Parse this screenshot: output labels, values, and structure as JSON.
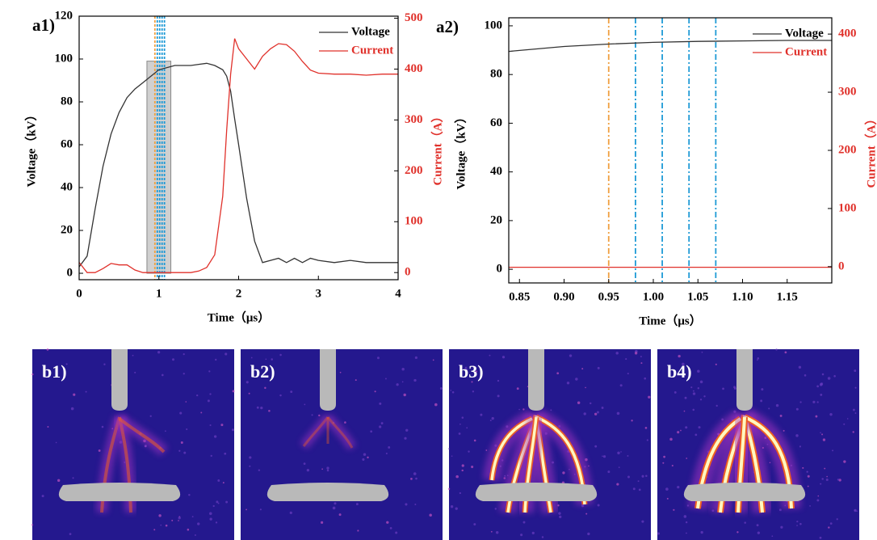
{
  "chart_data": [
    {
      "type": "line",
      "label": "a1)",
      "xlabel": "Time（μs）",
      "ylabel": "Voltage（kV）",
      "y2label": "Current（A）",
      "x": [
        0,
        0.1,
        0.2,
        0.3,
        0.4,
        0.5,
        0.6,
        0.7,
        0.8,
        0.9,
        1.0,
        1.2,
        1.4,
        1.5,
        1.6,
        1.7,
        1.8,
        1.85,
        1.9,
        1.95,
        2.0,
        2.1,
        2.2,
        2.3,
        2.4,
        2.5,
        2.6,
        2.7,
        2.8,
        2.9,
        3.0,
        3.2,
        3.4,
        3.6,
        3.8,
        4.0
      ],
      "xlim": [
        0,
        4
      ],
      "xticks": [
        0,
        1,
        2,
        3,
        4
      ],
      "ylim": [
        -3,
        120
      ],
      "yticks": [
        0,
        20,
        40,
        60,
        80,
        100,
        120
      ],
      "y2lim": [
        -14,
        504
      ],
      "y2ticks": [
        0,
        100,
        200,
        300,
        400,
        500
      ],
      "series": [
        {
          "name": "Voltage",
          "color": "#333333",
          "values": [
            3,
            8,
            30,
            50,
            65,
            75,
            82,
            86,
            89,
            92,
            95,
            97,
            97,
            97.5,
            98,
            97,
            95,
            92,
            85,
            72,
            60,
            35,
            15,
            5,
            6,
            7,
            5,
            7,
            5,
            7,
            6,
            5,
            6,
            5,
            5,
            5
          ]
        },
        {
          "name": "Current",
          "color": "#e0312b",
          "axis": "y2",
          "values": [
            20,
            0,
            0,
            8,
            18,
            15,
            15,
            5,
            0,
            0,
            0,
            0,
            0,
            3,
            10,
            35,
            150,
            280,
            390,
            460,
            440,
            420,
            400,
            425,
            440,
            450,
            448,
            435,
            415,
            398,
            392,
            390,
            390,
            388,
            390,
            390
          ]
        }
      ],
      "highlight": {
        "x": [
          0.85,
          1.15
        ],
        "y": [
          0,
          99
        ]
      },
      "markers": [
        {
          "x": 0.95,
          "color": "#f0a040"
        },
        {
          "x": 0.98,
          "color": "#1e9ad6"
        },
        {
          "x": 1.01,
          "color": "#1e9ad6"
        },
        {
          "x": 1.04,
          "color": "#1e9ad6"
        },
        {
          "x": 1.07,
          "color": "#1e9ad6"
        }
      ],
      "legend": "upper right"
    },
    {
      "type": "line",
      "label": "a2)",
      "xlabel": "Time（μs）",
      "ylabel": "Voltage（kV）",
      "y2label": "Current（A）",
      "x": [
        0.838,
        0.9,
        0.95,
        1.0,
        1.05,
        1.1,
        1.15,
        1.2
      ],
      "xlim": [
        0.838,
        1.2
      ],
      "xticks": [
        0.85,
        {
          "value": 0.9,
          "label": "0.90"
        },
        0.95,
        {
          "value": 1,
          "label": "1.00"
        },
        1.05,
        {
          "value": 1.1,
          "label": "1.10"
        },
        1.15
      ],
      "ylim": [
        -5.6,
        103.3
      ],
      "yticks": [
        0,
        20,
        40,
        60,
        80,
        100
      ],
      "y2lim": [
        -28,
        428
      ],
      "y2ticks": [
        0,
        100,
        200,
        300,
        400
      ],
      "series": [
        {
          "name": "Voltage",
          "color": "#333333",
          "values": [
            89.5,
            91.5,
            92.5,
            93.2,
            93.6,
            93.8,
            94,
            94
          ]
        },
        {
          "name": "Current",
          "color": "#e0312b",
          "axis": "y2",
          "values": [
            -1,
            -1,
            -1,
            -1,
            -1,
            -1,
            -1,
            -1
          ]
        }
      ],
      "markers": [
        {
          "x": 0.95,
          "color": "#f0a040"
        },
        {
          "x": 0.98,
          "color": "#1e9ad6"
        },
        {
          "x": 1.01,
          "color": "#1e9ad6"
        },
        {
          "x": 1.04,
          "color": "#1e9ad6"
        },
        {
          "x": 1.07,
          "color": "#1e9ad6"
        }
      ],
      "legend": "upper right"
    }
  ],
  "images": [
    {
      "label": "b1)"
    },
    {
      "label": "b2)"
    },
    {
      "label": "b3)"
    },
    {
      "label": "b4)"
    }
  ]
}
